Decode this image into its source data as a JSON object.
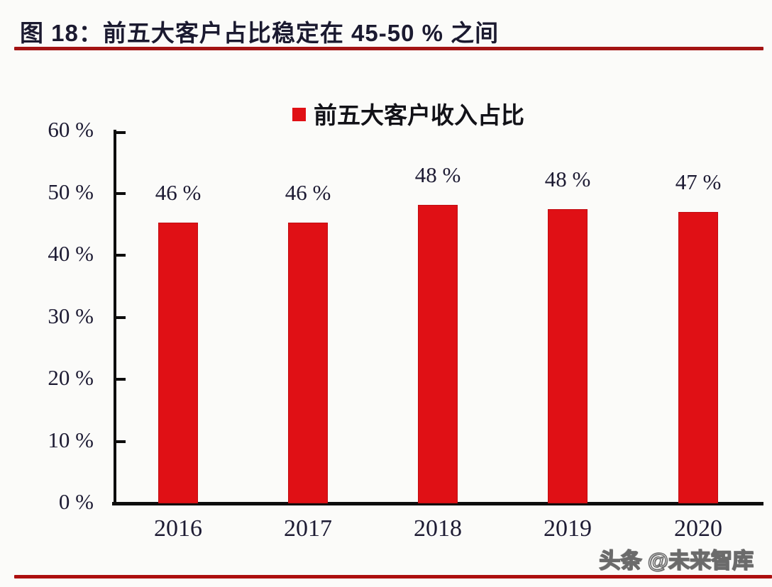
{
  "header": {
    "title": "图 18：前五大客户占比稳定在 45-50 % 之间"
  },
  "legend": {
    "label": "前五大客户收入占比",
    "marker_color": "#e01015"
  },
  "watermark": {
    "text": "头条 @未来智库"
  },
  "colors": {
    "bar": "#e01015",
    "title_rule": "#a31414",
    "bottom_rule": "#ad1010",
    "axis": "#0d0d0d",
    "label_text": "#1d1b33"
  },
  "chart_data": {
    "type": "bar",
    "title": "前五大客户占比稳定在 45-50 % 之间",
    "legend": [
      "前五大客户收入占比"
    ],
    "legend_position": "top-center",
    "categories": [
      "2016",
      "2017",
      "2018",
      "2019",
      "2020"
    ],
    "values": [
      46,
      46,
      48,
      48,
      47
    ],
    "value_labels": [
      "46 %",
      "46 %",
      "48 %",
      "48 %",
      "47 %"
    ],
    "bar_render_heights_pct": [
      45.3,
      45.3,
      48.1,
      47.4,
      47.0
    ],
    "y_tick_values": [
      60,
      50,
      40,
      30,
      20,
      10,
      0
    ],
    "y_tick_labels": [
      "60 %",
      "50 %",
      "40 %",
      "30 %",
      "20 %",
      "10 %",
      "0 %"
    ],
    "ylim": [
      0,
      60
    ],
    "xlabel": "",
    "ylabel": "",
    "grid": false
  }
}
